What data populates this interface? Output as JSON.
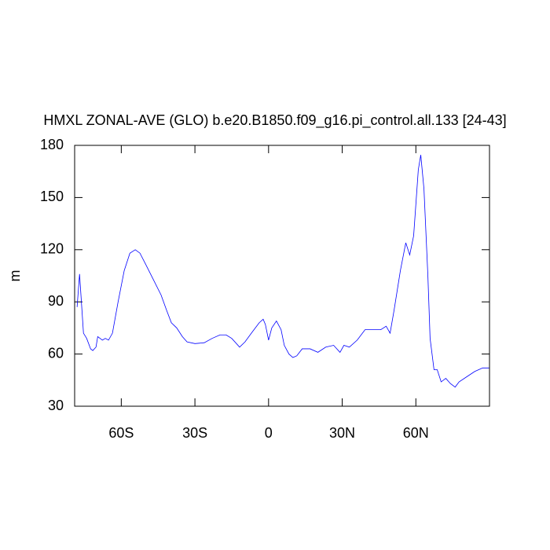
{
  "chart_data": {
    "type": "line",
    "title": "HMXL ZONAL-AVE (GLO) b.e20.B1850.f09_g16.pi_control.all.133 [24-43]",
    "y_label": "m",
    "x": [
      -78,
      -77,
      -75.4,
      -74.1,
      -72.5,
      -71.6,
      -70.3,
      -69.6,
      -67.7,
      -66.5,
      -65.2,
      -63.6,
      -61.3,
      -58.8,
      -56.5,
      -54.3,
      -52.4,
      -50.2,
      -47,
      -43.8,
      -41.5,
      -39.6,
      -37.4,
      -35.1,
      -33.2,
      -30,
      -26.2,
      -23,
      -19.8,
      -17.3,
      -15,
      -11.8,
      -9.6,
      -7,
      -3.8,
      -2.2,
      -1.3,
      0,
      1.3,
      3.2,
      5.1,
      6.4,
      8.3,
      9.9,
      11.5,
      13.7,
      16.9,
      20.1,
      23.3,
      26.5,
      29.1,
      30.7,
      32.9,
      36.1,
      39.3,
      42.5,
      45.7,
      47.9,
      49.5,
      51.1,
      53.7,
      55.9,
      57.5,
      59.1,
      61,
      62,
      63.3,
      64.9,
      65.8,
      67.4,
      68.7,
      70.3,
      72.2,
      74.1,
      76,
      77.6,
      80.8,
      84,
      87.2,
      89.8
    ],
    "series": [
      {
        "color": "#0000ff",
        "values": [
          87,
          106,
          72,
          69,
          63,
          62,
          64,
          70,
          68,
          69,
          68,
          72,
          90,
          108,
          118,
          120,
          118,
          112,
          103,
          94,
          85,
          78,
          75,
          70,
          67,
          66,
          66.5,
          69,
          71,
          71,
          69,
          64,
          67,
          72,
          78,
          80,
          77,
          68,
          75,
          79,
          74,
          65,
          60,
          58,
          59,
          63,
          63,
          61,
          64,
          65,
          61,
          65,
          64,
          68,
          74,
          74,
          74,
          76,
          72,
          85,
          108,
          124,
          117,
          128,
          166,
          174.5,
          155,
          105,
          69,
          51,
          51,
          44,
          46,
          43,
          41,
          44,
          47,
          50,
          52,
          52
        ]
      }
    ],
    "xlim": [
      -79,
      90
    ],
    "ylim": [
      30,
      180
    ],
    "xticks": [
      {
        "value": -60,
        "label": "60S"
      },
      {
        "value": -30,
        "label": "30S"
      },
      0,
      {
        "value": 30,
        "label": "30N"
      },
      {
        "value": 60,
        "label": "60N"
      }
    ],
    "yticks": [
      30,
      60,
      90,
      120,
      150,
      180
    ]
  }
}
